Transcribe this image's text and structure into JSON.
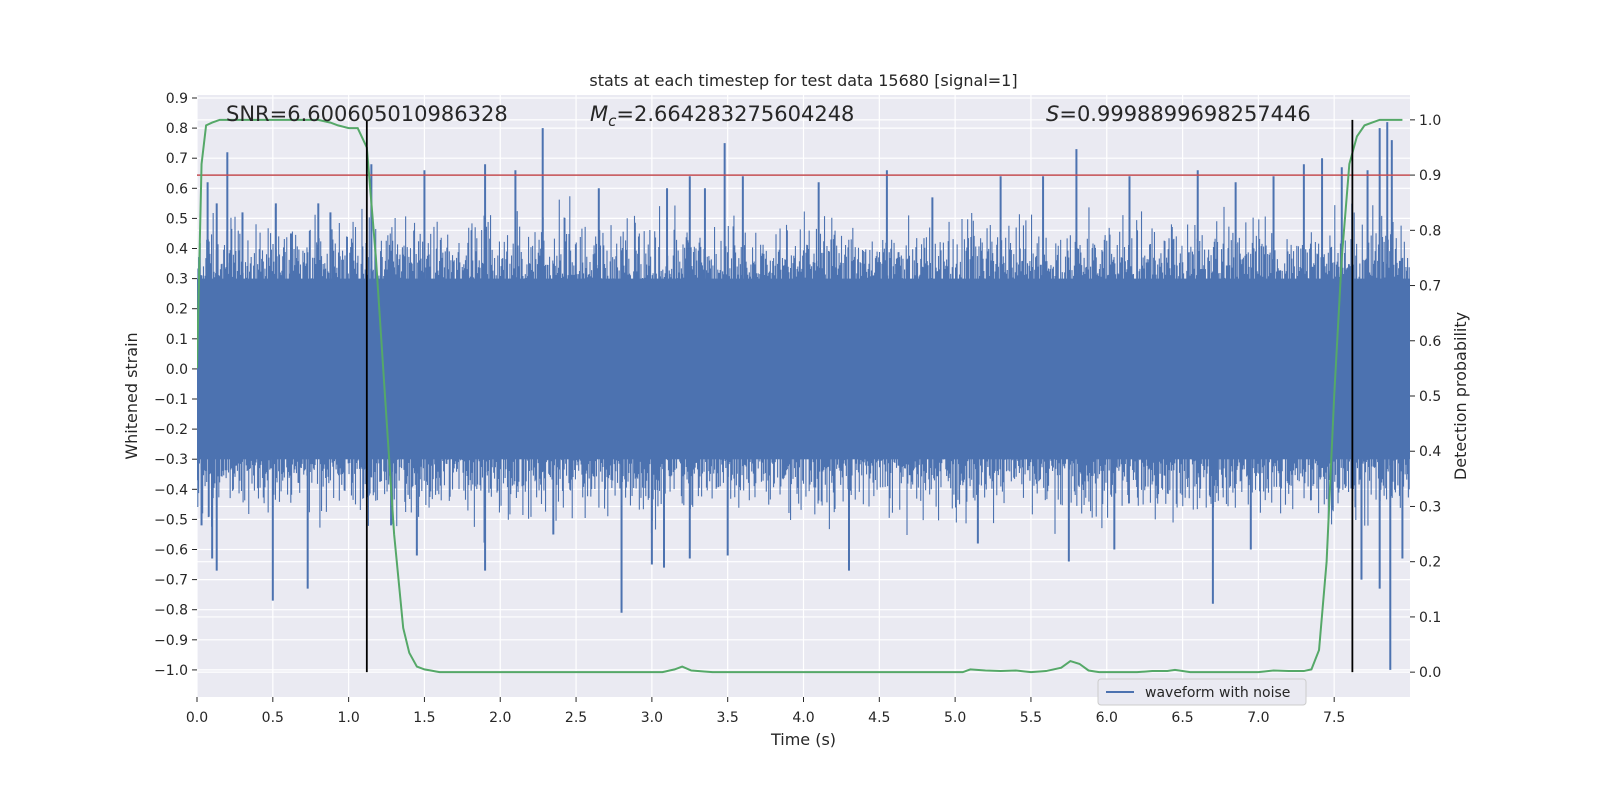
{
  "chart_data": {
    "type": "line",
    "title": "stats at each timestep for test data 15680 [signal=1]",
    "xlabel": "Time (s)",
    "ylabel": "Whitened strain",
    "y2label": "Detection probability",
    "xlim": [
      0.0,
      8.0
    ],
    "ylim": [
      -1.09,
      0.91
    ],
    "y2lim": [
      -0.045,
      1.045
    ],
    "xticks": [
      "0.0",
      "0.5",
      "1.0",
      "1.5",
      "2.0",
      "2.5",
      "3.0",
      "3.5",
      "4.0",
      "4.5",
      "5.0",
      "5.5",
      "6.0",
      "6.5",
      "7.0",
      "7.5"
    ],
    "yticks": [
      "0.9",
      "0.8",
      "0.7",
      "0.6",
      "0.5",
      "0.4",
      "0.3",
      "0.2",
      "0.1",
      "0.0",
      "−0.1",
      "−0.2",
      "−0.3",
      "−0.4",
      "−0.5",
      "−0.6",
      "−0.7",
      "−0.8",
      "−0.9",
      "−1.0"
    ],
    "y2ticks": [
      "1.0",
      "0.9",
      "0.8",
      "0.7",
      "0.6",
      "0.5",
      "0.4",
      "0.3",
      "0.2",
      "0.1",
      "0.0"
    ],
    "grid": true,
    "legend_position": "lower right",
    "annotations": {
      "snr_label": "SNR=6.600605010986328",
      "mc_symbol": "M",
      "mc_subscript": "c",
      "mc_value": "=2.664283275604248",
      "s_symbol": "S",
      "s_value": "=0.9998899698257446"
    },
    "threshold": 0.9,
    "vlines": [
      1.12,
      7.62
    ],
    "series": [
      {
        "name": "waveform with noise",
        "axis": "left",
        "style": "dense noise band",
        "envelope_typical": [
          -0.3,
          0.3
        ],
        "positive_spikes": [
          [
            0.07,
            0.62
          ],
          [
            0.13,
            0.55
          ],
          [
            0.2,
            0.72
          ],
          [
            0.3,
            0.52
          ],
          [
            0.52,
            0.55
          ],
          [
            0.62,
            0.45
          ],
          [
            0.8,
            0.55
          ],
          [
            0.88,
            0.52
          ],
          [
            1.15,
            0.68
          ],
          [
            1.5,
            0.66
          ],
          [
            1.9,
            0.68
          ],
          [
            2.1,
            0.66
          ],
          [
            2.28,
            0.8
          ],
          [
            2.65,
            0.6
          ],
          [
            3.1,
            0.6
          ],
          [
            3.25,
            0.64
          ],
          [
            3.35,
            0.6
          ],
          [
            3.48,
            0.75
          ],
          [
            3.6,
            0.64
          ],
          [
            4.1,
            0.62
          ],
          [
            4.55,
            0.66
          ],
          [
            4.85,
            0.57
          ],
          [
            5.3,
            0.64
          ],
          [
            5.58,
            0.64
          ],
          [
            5.8,
            0.73
          ],
          [
            6.15,
            0.64
          ],
          [
            6.6,
            0.66
          ],
          [
            6.85,
            0.62
          ],
          [
            7.1,
            0.64
          ],
          [
            7.3,
            0.68
          ],
          [
            7.42,
            0.7
          ],
          [
            7.55,
            0.67
          ],
          [
            7.72,
            0.66
          ],
          [
            7.8,
            0.8
          ],
          [
            7.85,
            0.82
          ],
          [
            7.88,
            0.76
          ]
        ],
        "negative_spikes": [
          [
            0.03,
            -0.52
          ],
          [
            0.1,
            -0.63
          ],
          [
            0.13,
            -0.67
          ],
          [
            0.5,
            -0.77
          ],
          [
            0.73,
            -0.73
          ],
          [
            1.28,
            -0.52
          ],
          [
            1.45,
            -0.62
          ],
          [
            1.9,
            -0.67
          ],
          [
            2.35,
            -0.55
          ],
          [
            2.8,
            -0.81
          ],
          [
            3.0,
            -0.65
          ],
          [
            3.08,
            -0.66
          ],
          [
            3.25,
            -0.63
          ],
          [
            3.5,
            -0.62
          ],
          [
            4.3,
            -0.67
          ],
          [
            5.15,
            -0.58
          ],
          [
            5.75,
            -0.64
          ],
          [
            6.05,
            -0.6
          ],
          [
            6.7,
            -0.78
          ],
          [
            6.95,
            -0.6
          ],
          [
            7.68,
            -0.7
          ],
          [
            7.8,
            -0.73
          ],
          [
            7.87,
            -1.0
          ],
          [
            7.95,
            -0.63
          ]
        ]
      },
      {
        "name": "",
        "axis": "right",
        "color": "#55a868",
        "x": [
          0.0,
          0.03,
          0.06,
          0.1,
          0.15,
          0.2,
          0.3,
          0.4,
          0.5,
          0.6,
          0.7,
          0.8,
          0.88,
          0.93,
          1.0,
          1.06,
          1.12,
          1.18,
          1.24,
          1.3,
          1.36,
          1.4,
          1.45,
          1.5,
          1.6,
          1.7,
          2.0,
          2.5,
          2.8,
          3.0,
          3.07,
          3.15,
          3.2,
          3.26,
          3.4,
          3.5,
          3.6,
          3.7,
          4.0,
          4.5,
          4.8,
          5.0,
          5.05,
          5.1,
          5.2,
          5.3,
          5.4,
          5.5,
          5.6,
          5.7,
          5.76,
          5.82,
          5.88,
          5.95,
          6.0,
          6.1,
          6.2,
          6.3,
          6.4,
          6.45,
          6.5,
          6.55,
          6.6,
          6.65,
          6.7,
          6.8,
          6.9,
          7.0,
          7.1,
          7.2,
          7.3,
          7.35,
          7.4,
          7.45,
          7.5,
          7.55,
          7.6,
          7.65,
          7.7,
          7.75,
          7.8,
          7.85,
          7.9,
          7.95
        ],
        "y": [
          0.55,
          0.92,
          0.99,
          0.995,
          1.0,
          1.0,
          1.0,
          1.0,
          1.0,
          1.0,
          1.0,
          1.0,
          0.995,
          0.99,
          0.985,
          0.985,
          0.95,
          0.75,
          0.5,
          0.25,
          0.08,
          0.035,
          0.01,
          0.005,
          0.0,
          0.0,
          0.0,
          0.0,
          0.0,
          0.0,
          0.0,
          0.005,
          0.01,
          0.003,
          0.0,
          0.0,
          0.0,
          0.0,
          0.0,
          0.0,
          0.0,
          0.0,
          0.0,
          0.005,
          0.003,
          0.002,
          0.003,
          0.0,
          0.002,
          0.008,
          0.02,
          0.015,
          0.003,
          0.0,
          0.0,
          0.0,
          0.0,
          0.002,
          0.002,
          0.004,
          0.002,
          0.0,
          0.0,
          0.0,
          0.0,
          0.0,
          0.0,
          0.0,
          0.003,
          0.002,
          0.002,
          0.005,
          0.04,
          0.2,
          0.5,
          0.75,
          0.92,
          0.97,
          0.99,
          0.995,
          1.0,
          1.0,
          1.0,
          1.0
        ]
      }
    ],
    "colors": {
      "waveform": "#4c72b0",
      "probability": "#55a868",
      "threshold": "#c44e52",
      "vline": "#000000",
      "plot_background": "#eaeaf2",
      "grid": "#ffffff"
    }
  }
}
